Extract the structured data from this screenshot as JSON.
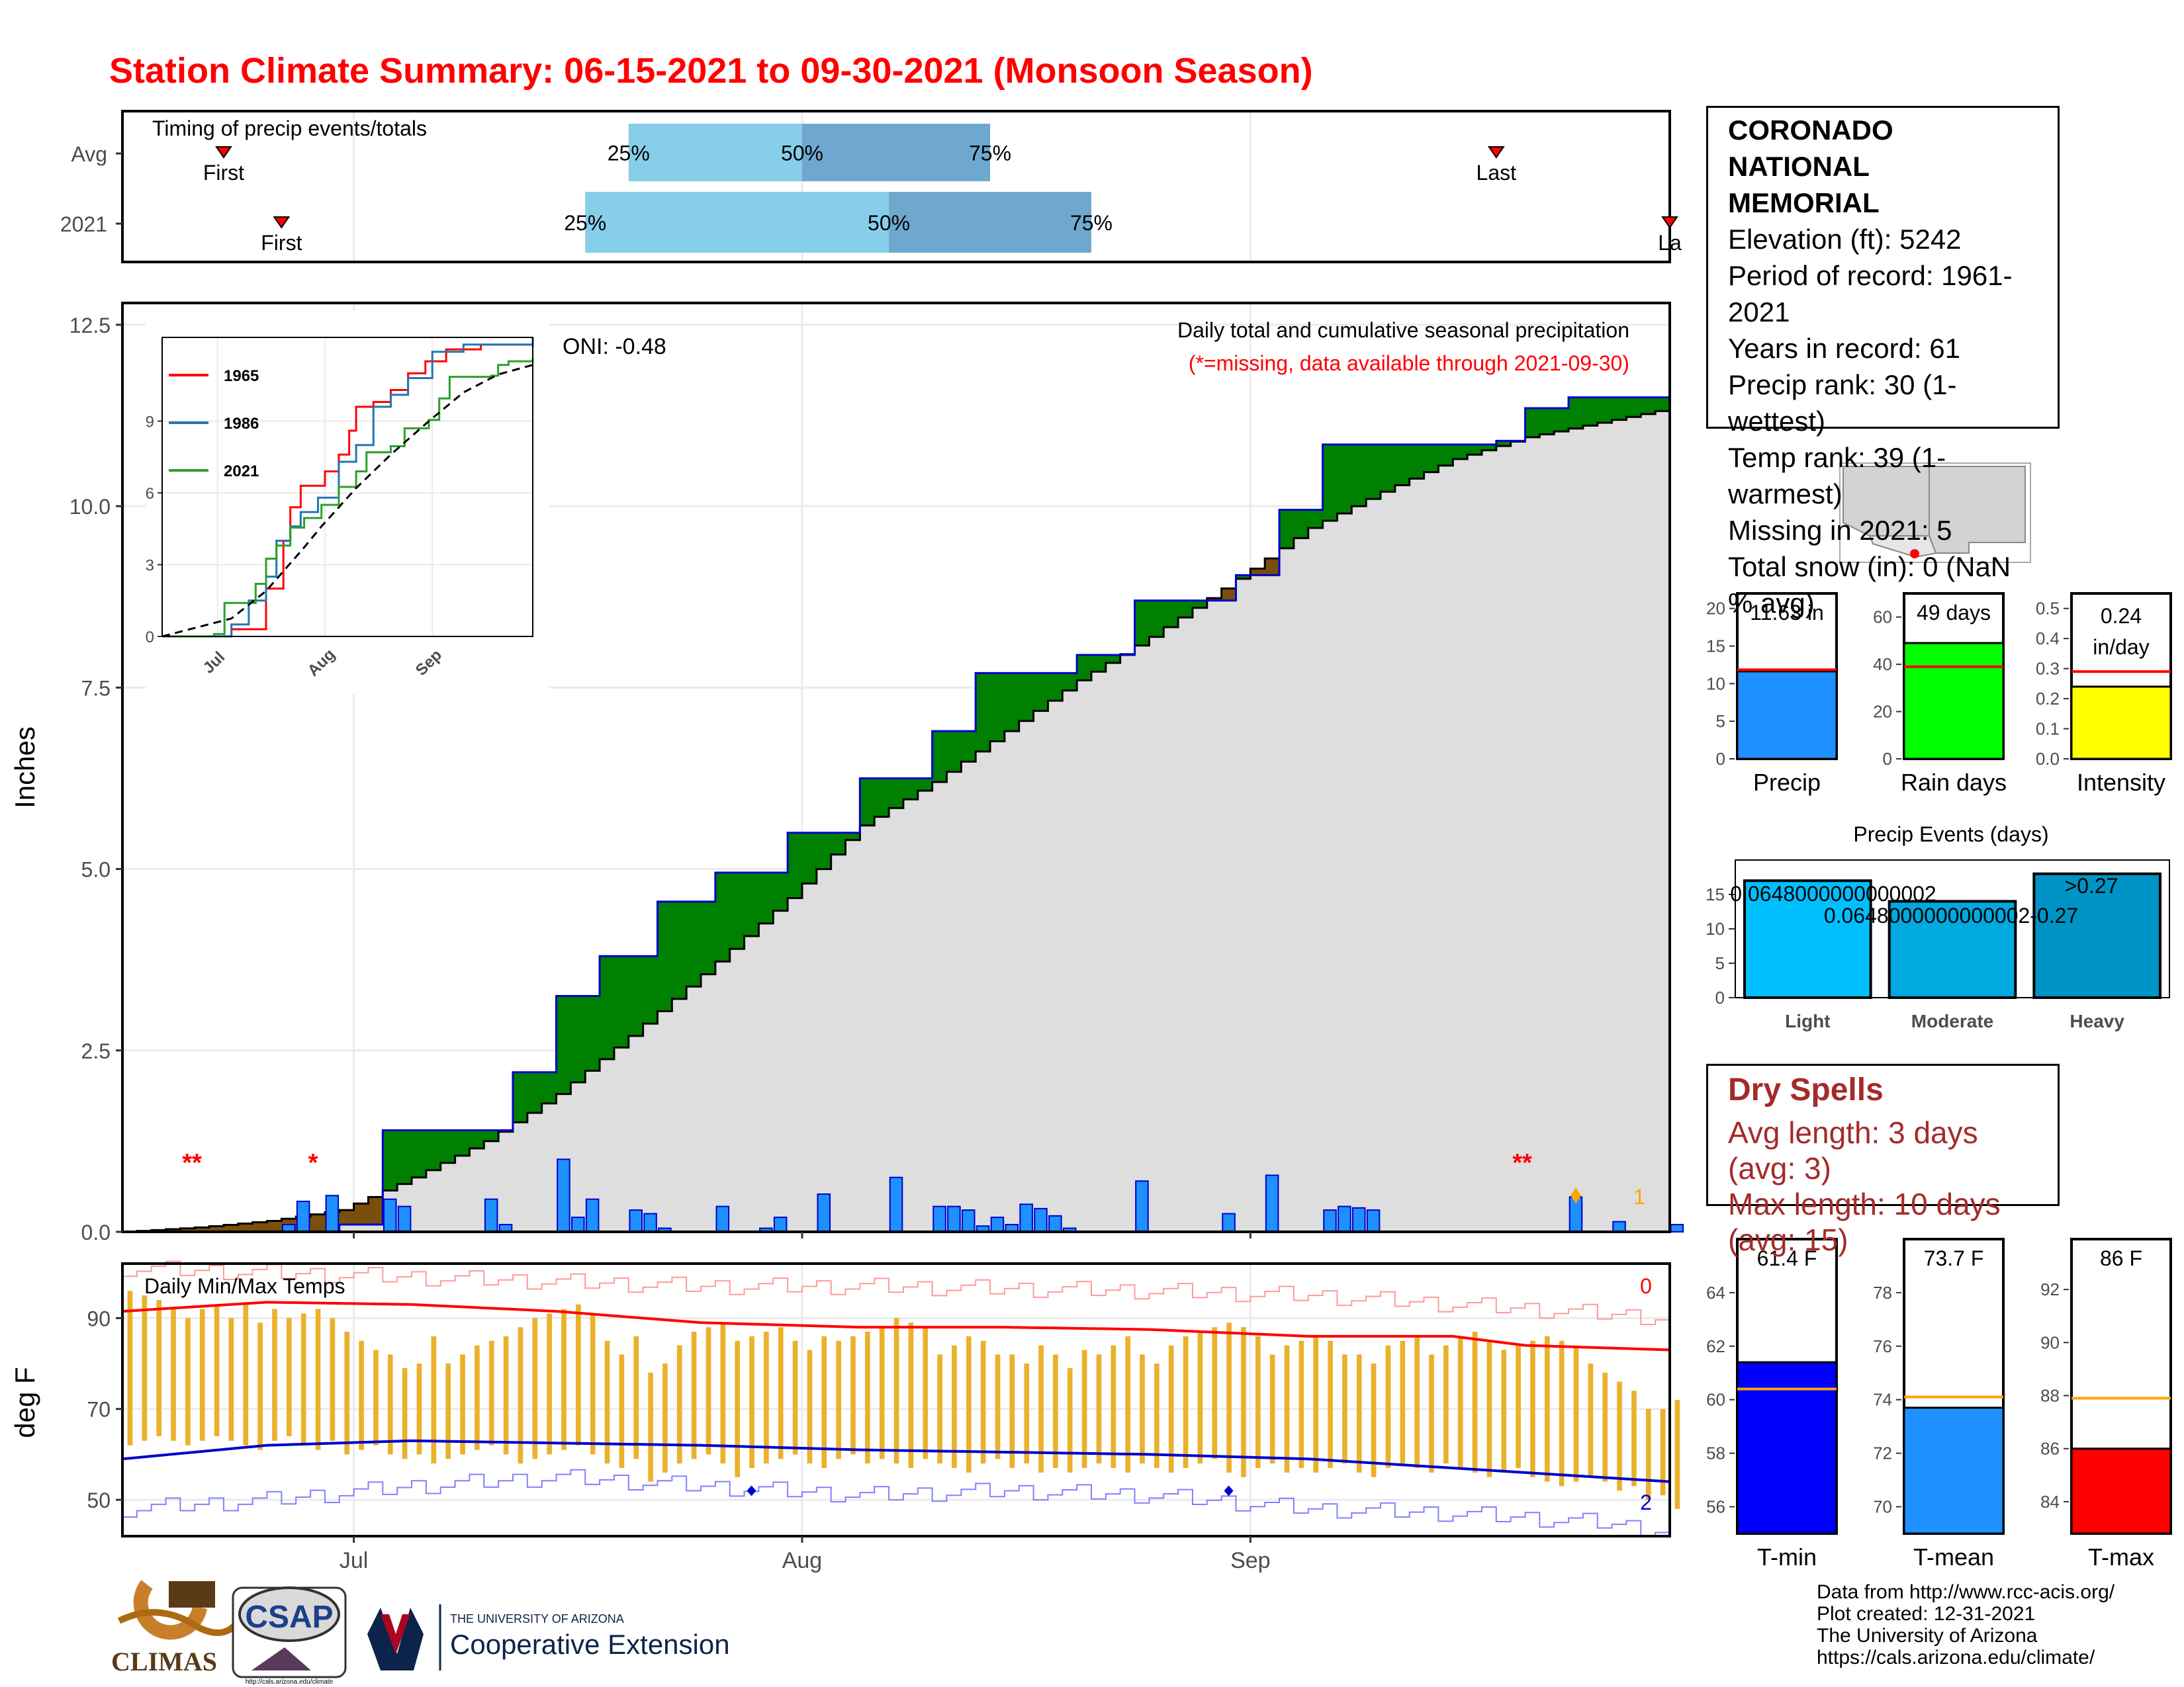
{
  "title": "Station Climate Summary: 06-15-2021 to 09-30-2021 (Monsoon Season)",
  "colors": {
    "title": "#ff0000",
    "early_fill": "#7a4e0b",
    "late_fill": "#008000",
    "avg_area": "#dedede",
    "daily_bar": "#1e90ff",
    "tmax_bar": "#ebb12a",
    "quartile_light": "#87ceeb",
    "quartile_dark": "#6fa8cf"
  },
  "timing": {
    "label": "Timing of precip events/totals",
    "row_labels": [
      "Avg",
      "2021"
    ],
    "first_label": "First",
    "last_label": "Last",
    "last_label_2021": "La",
    "pct_labels": [
      "25%",
      "50%",
      "75%"
    ],
    "avg": {
      "first": "2021-06-22",
      "p25": "2021-07-20",
      "p50": "2021-08-01",
      "p75": "2021-08-14",
      "last": "2021-09-18"
    },
    "y2021": {
      "first": "2021-06-26",
      "p25": "2021-07-17",
      "p50": "2021-08-07",
      "p75": "2021-08-21",
      "last": "2021-09-30"
    }
  },
  "precip_panel": {
    "ylabel": "Inches",
    "yticks": [
      "0.0",
      "2.5",
      "5.0",
      "7.5",
      "10.0",
      "12.5"
    ],
    "xticks": [
      "Jul",
      "Aug",
      "Sep"
    ],
    "title": "Daily total and cumulative seasonal precipitation",
    "subtitle": "(*=missing, data available through 2021-09-30)",
    "oni": "ONI: -0.48",
    "missing_markers": [
      "**",
      "*",
      "**"
    ],
    "corner_count": "1"
  },
  "chart_data": [
    {
      "type": "area",
      "title": "Daily total and cumulative seasonal precipitation",
      "ylabel": "Inches",
      "ylim": [
        0,
        12.8
      ],
      "xlim": [
        "2021-06-15",
        "2021-09-30"
      ],
      "avg_cumulative": {
        "x": [
          "06-15",
          "06-20",
          "06-25",
          "06-30",
          "07-05",
          "07-10",
          "07-15",
          "07-20",
          "07-25",
          "07-31",
          "08-05",
          "08-10",
          "08-15",
          "08-20",
          "08-25",
          "08-31",
          "09-05",
          "09-10",
          "09-15",
          "09-20",
          "09-25",
          "09-30"
        ],
        "y": [
          0,
          0.06,
          0.15,
          0.3,
          0.75,
          1.25,
          1.9,
          2.7,
          3.55,
          4.6,
          5.6,
          6.2,
          6.9,
          7.6,
          8.2,
          9.0,
          9.7,
          10.2,
          10.65,
          10.95,
          11.15,
          11.35
        ]
      },
      "obs_cumulative": {
        "x": [
          "06-15",
          "06-26",
          "06-30",
          "07-03",
          "07-12",
          "07-15",
          "07-18",
          "07-22",
          "07-26",
          "07-31",
          "08-05",
          "08-10",
          "08-13",
          "08-20",
          "08-24",
          "08-31",
          "09-03",
          "09-06",
          "09-12",
          "09-18",
          "09-20",
          "09-23",
          "09-30"
        ],
        "y": [
          0,
          0,
          0.1,
          1.4,
          2.2,
          3.25,
          3.8,
          4.55,
          4.95,
          5.5,
          6.25,
          6.9,
          7.7,
          7.95,
          8.7,
          9.05,
          9.95,
          10.85,
          10.85,
          10.9,
          11.35,
          11.5,
          11.63
        ]
      },
      "daily": {
        "x": [
          "06-26",
          "06-27",
          "06-29",
          "07-03",
          "07-04",
          "07-10",
          "07-11",
          "07-15",
          "07-16",
          "07-17",
          "07-20",
          "07-21",
          "07-22",
          "07-26",
          "07-29",
          "07-30",
          "08-02",
          "08-07",
          "08-10",
          "08-11",
          "08-12",
          "08-13",
          "08-14",
          "08-15",
          "08-16",
          "08-17",
          "08-18",
          "08-19",
          "08-24",
          "08-30",
          "09-02",
          "09-06",
          "09-07",
          "09-08",
          "09-09",
          "09-23",
          "09-26",
          "09-30"
        ],
        "y": [
          0.1,
          0.42,
          0.5,
          0.45,
          0.35,
          0.45,
          0.1,
          1.0,
          0.2,
          0.45,
          0.3,
          0.25,
          0.05,
          0.35,
          0.05,
          0.2,
          0.52,
          0.75,
          0.35,
          0.35,
          0.3,
          0.08,
          0.2,
          0.1,
          0.38,
          0.32,
          0.22,
          0.05,
          0.7,
          0.25,
          0.78,
          0.3,
          0.35,
          0.33,
          0.3,
          0.48,
          0.14,
          0.1
        ]
      }
    },
    {
      "type": "line",
      "series": [
        {
          "name": "1965",
          "x": [
            "06-15",
            "07-05",
            "07-15",
            "07-20",
            "07-22",
            "07-25",
            "07-27",
            "08-01",
            "08-05",
            "08-08",
            "08-10",
            "08-15",
            "08-20",
            "08-25",
            "08-30",
            "09-05",
            "09-15",
            "09-30"
          ],
          "y": [
            0,
            0.3,
            2.0,
            4.0,
            5.4,
            6.3,
            6.3,
            6.9,
            7.6,
            8.6,
            9.6,
            9.8,
            10.3,
            11.0,
            11.5,
            12.0,
            12.2,
            12.1
          ]
        },
        {
          "name": "1986",
          "x": [
            "06-15",
            "07-05",
            "07-10",
            "07-15",
            "07-18",
            "07-22",
            "07-25",
            "07-30",
            "08-05",
            "08-10",
            "08-15",
            "08-20",
            "08-25",
            "09-01",
            "09-10",
            "09-30"
          ],
          "y": [
            0,
            0.5,
            1.5,
            2.5,
            4.0,
            4.6,
            5.2,
            5.8,
            7.3,
            8.0,
            9.6,
            10.1,
            10.8,
            11.9,
            12.2,
            12.5
          ]
        },
        {
          "name": "2021",
          "x": [
            "06-15",
            "06-26",
            "06-30",
            "07-03",
            "07-12",
            "07-15",
            "07-18",
            "07-22",
            "07-26",
            "07-31",
            "08-05",
            "08-10",
            "08-13",
            "08-20",
            "08-24",
            "08-31",
            "09-03",
            "09-06",
            "09-18",
            "09-20",
            "09-23",
            "09-30"
          ],
          "y": [
            0,
            0,
            0.1,
            1.4,
            2.2,
            3.25,
            3.8,
            4.55,
            4.95,
            5.5,
            6.25,
            6.9,
            7.7,
            7.95,
            8.7,
            9.05,
            9.95,
            10.85,
            10.9,
            11.35,
            11.5,
            11.63
          ]
        },
        {
          "name": "avg",
          "x": [
            "06-15",
            "07-05",
            "07-15",
            "07-25",
            "07-31",
            "08-10",
            "08-20",
            "08-31",
            "09-10",
            "09-20",
            "09-30"
          ],
          "y": [
            0,
            0.75,
            1.9,
            3.55,
            4.6,
            6.2,
            7.6,
            9.0,
            10.2,
            10.95,
            11.35
          ]
        }
      ],
      "yticks": [
        "0",
        "3",
        "6",
        "9"
      ],
      "xticks": [
        "Jul",
        "Aug",
        "Sep"
      ],
      "ylim": [
        0,
        12.5
      ]
    },
    {
      "type": "bar",
      "title": "Daily Min/Max Temps",
      "ylabel": "deg F",
      "yticks": [
        "50",
        "70",
        "90"
      ],
      "ylim": [
        42,
        102
      ],
      "xticks": [
        "Jul",
        "Aug",
        "Sep"
      ],
      "avg_max": {
        "x": [
          "06-15",
          "06-25",
          "07-05",
          "07-15",
          "07-25",
          "08-05",
          "08-15",
          "08-25",
          "09-05",
          "09-15",
          "09-20",
          "09-30"
        ],
        "y": [
          91.5,
          93.5,
          93,
          91.5,
          89,
          88,
          88,
          87.5,
          86,
          86,
          84,
          83
        ]
      },
      "avg_min": {
        "x": [
          "06-15",
          "06-25",
          "07-05",
          "07-15",
          "07-25",
          "08-05",
          "08-15",
          "08-25",
          "09-05",
          "09-15",
          "09-25",
          "09-30"
        ],
        "y": [
          59,
          62,
          63,
          62.5,
          62,
          61,
          60.5,
          60,
          59,
          57,
          55,
          54
        ]
      },
      "record_max": {
        "x": [
          "06-15",
          "06-25",
          "07-05",
          "07-15",
          "07-25",
          "08-05",
          "08-15",
          "08-25",
          "09-05",
          "09-15",
          "09-25",
          "09-30"
        ],
        "y": [
          101,
          100,
          99,
          98,
          97,
          97,
          96.5,
          96,
          95,
          93,
          91,
          90
        ]
      },
      "record_min": {
        "x": [
          "06-15",
          "06-25",
          "07-05",
          "07-15",
          "07-25",
          "08-05",
          "08-15",
          "08-25",
          "09-05",
          "09-15",
          "09-25",
          "09-30"
        ],
        "y": [
          48,
          50,
          53,
          55,
          53,
          51,
          52,
          51,
          48,
          47,
          45,
          43
        ]
      },
      "tmax": [
        96,
        95,
        94,
        92,
        90,
        92,
        93,
        90,
        93,
        89,
        92,
        90,
        91,
        92,
        90,
        87,
        85,
        83,
        82,
        79,
        80,
        86,
        80,
        82,
        84,
        85,
        86,
        88,
        90,
        91,
        92,
        93,
        91,
        85,
        82,
        86,
        78,
        80,
        84,
        87,
        88,
        89,
        85,
        86,
        87,
        88,
        85,
        83,
        86,
        85,
        86,
        87,
        88,
        90,
        89,
        88,
        82,
        84,
        86,
        85,
        82,
        82,
        80,
        84,
        82,
        79,
        83,
        82,
        84,
        86,
        82,
        80,
        84,
        86,
        87,
        88,
        89,
        88,
        86,
        82,
        84,
        85,
        86,
        85,
        82,
        82,
        80,
        84,
        85,
        86,
        82,
        84,
        86,
        87,
        85,
        83,
        84,
        85,
        86,
        85,
        84,
        80,
        78,
        76,
        74,
        70,
        70,
        72,
        69,
        70
      ],
      "tmin": [
        62,
        63,
        64,
        63,
        62,
        63,
        64,
        63,
        62,
        61,
        63,
        64,
        62,
        61,
        63,
        60,
        61,
        62,
        60,
        59,
        60,
        58,
        59,
        60,
        61,
        62,
        60,
        58,
        59,
        60,
        61,
        62,
        60,
        58,
        57,
        59,
        54,
        56,
        58,
        59,
        60,
        58,
        55,
        57,
        58,
        59,
        60,
        58,
        57,
        59,
        60,
        58,
        59,
        58,
        57,
        59,
        58,
        57,
        56,
        58,
        59,
        57,
        58,
        56,
        57,
        56,
        57,
        58,
        57,
        56,
        58,
        57,
        56,
        57,
        58,
        59,
        56,
        55,
        57,
        58,
        56,
        57,
        56,
        57,
        58,
        56,
        55,
        57,
        58,
        57,
        56,
        58,
        57,
        56,
        55,
        56,
        57,
        55,
        54,
        53,
        54,
        55,
        54,
        52,
        53,
        50,
        51,
        48,
        46,
        45
      ],
      "legend_counts": [
        "0",
        "2"
      ]
    },
    {
      "type": "bar",
      "categories": [
        "Precip"
      ],
      "values": [
        11.63
      ],
      "avg": 11.85,
      "label": "11.63 in",
      "yticks": [
        "0",
        "5",
        "10",
        "15",
        "20"
      ],
      "ylim": [
        0,
        22
      ]
    },
    {
      "type": "bar",
      "categories": [
        "Rain days"
      ],
      "values": [
        49
      ],
      "avg": 39,
      "label": "49 days",
      "yticks": [
        "0",
        "20",
        "40",
        "60"
      ],
      "ylim": [
        0,
        70
      ]
    },
    {
      "type": "bar",
      "categories": [
        "Intensity"
      ],
      "values": [
        0.24
      ],
      "avg": 0.29,
      "label": "0.24 in/day",
      "label_lines": [
        "0.24",
        "in/day"
      ],
      "yticks": [
        "0.0",
        "0.1",
        "0.2",
        "0.3",
        "0.4",
        "0.5"
      ],
      "ylim": [
        0,
        0.55
      ]
    },
    {
      "type": "bar",
      "title": "Precip Events (days)",
      "categories": [
        "Light",
        "Moderate",
        "Heavy"
      ],
      "values": [
        17,
        14,
        18
      ],
      "bin_labels": [
        "0.0648000000000002",
        "0.0648000000000002-0.27",
        ">0.27"
      ],
      "yticks": [
        "0",
        "5",
        "10",
        "15"
      ],
      "ylim": [
        0,
        20
      ]
    },
    {
      "type": "bar",
      "categories": [
        "T-min"
      ],
      "values": [
        61.4
      ],
      "avg": 60.4,
      "label": "61.4 F",
      "yticks": [
        "56",
        "58",
        "60",
        "62",
        "64"
      ],
      "ylim": [
        55,
        66
      ]
    },
    {
      "type": "bar",
      "categories": [
        "T-mean"
      ],
      "values": [
        73.7
      ],
      "avg": 74.1,
      "label": "73.7 F",
      "yticks": [
        "70",
        "72",
        "74",
        "76",
        "78"
      ],
      "ylim": [
        69,
        80
      ]
    },
    {
      "type": "bar",
      "categories": [
        "T-max"
      ],
      "values": [
        86
      ],
      "avg": 87.9,
      "label": "86 F",
      "yticks": [
        "84",
        "86",
        "88",
        "90",
        "92"
      ],
      "ylim": [
        82.8,
        93.9
      ]
    }
  ],
  "station": {
    "name_line1": "CORONADO NATIONAL",
    "name_line2": "MEMORIAL",
    "elevation": "Elevation (ft): 5242",
    "period": "Period of record: 1961-2021",
    "years": "Years in record: 61",
    "precip_rank": "Precip rank: 30 (1-wettest)",
    "temp_rank": "Temp rank: 39 (1-warmest)",
    "missing": "Missing in 2021: 5",
    "snow": "Total snow (in): 0 (NaN % avg)"
  },
  "dry_spells": {
    "title": "Dry Spells",
    "avg": "Avg length: 3 days (avg: 3)",
    "max": "Max length: 10 days (avg: 15)"
  },
  "credits": {
    "line1": "Data from http://www.rcc-acis.org/",
    "line2": "Plot created: 12-31-2021",
    "line3": "The University of Arizona",
    "line4": "https://cals.arizona.edu/climate/"
  },
  "logos": {
    "climas": "CLIMAS",
    "csap": "CSAP",
    "csap_url": "http://cals.arizona.edu/climate",
    "ua_small": "THE UNIVERSITY OF ARIZONA",
    "ua_big": "Cooperative Extension"
  }
}
